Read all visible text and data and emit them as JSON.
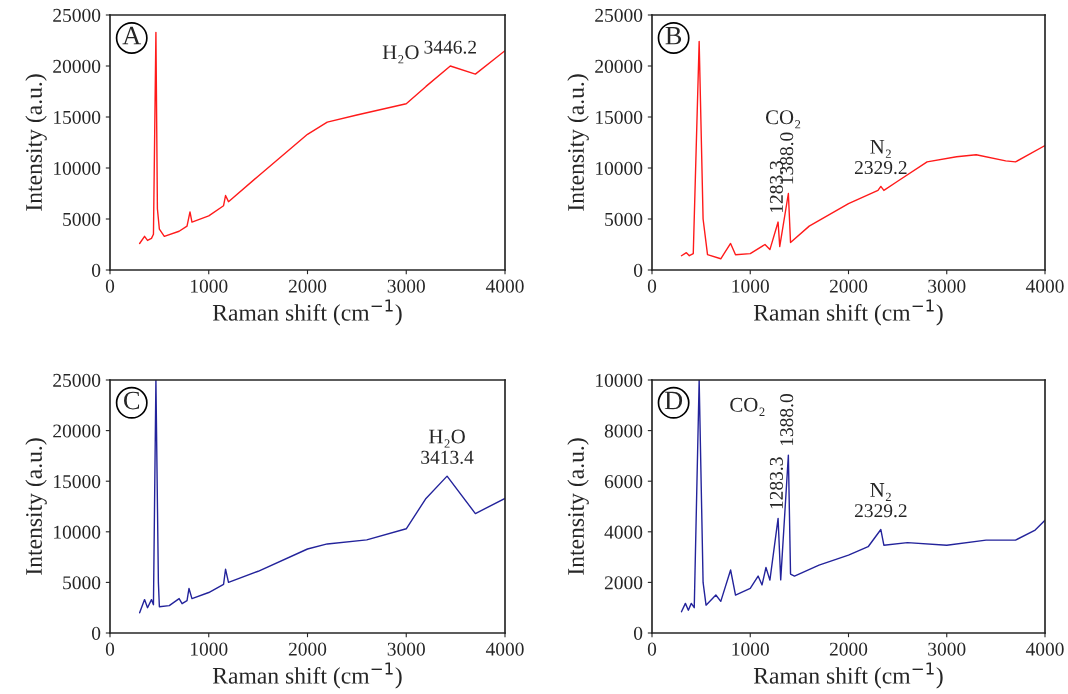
{
  "chart_data": [
    {
      "type": "line",
      "xlabel": "Raman shift (cm$^{−1}$)",
      "ylabel": "Intensity (a.u.)",
      "xlim": [
        0,
        4000
      ],
      "xticks": [
        0,
        1000,
        2000,
        3000,
        4000
      ],
      "ylim": [
        0,
        25000
      ],
      "yticks": [
        0,
        5000,
        10000,
        15000,
        20000,
        25000
      ],
      "annotations": [
        "A",
        "H₂O",
        {
          "text": "3446.2",
          "x": 3446.2,
          "y": 20000
        }
      ],
      "series": [
        {
          "color": "#ff1a1a",
          "x": [
            300,
            350,
            380,
            420,
            440,
            465,
            480,
            500,
            550,
            700,
            780,
            810,
            830,
            1000,
            1150,
            1170,
            1200,
            1500,
            2000,
            2200,
            2500,
            3000,
            3200,
            3446.2,
            3700,
            4000
          ],
          "values": [
            2600,
            3300,
            2900,
            3100,
            3500,
            23300,
            6000,
            4000,
            3300,
            3800,
            4300,
            5700,
            4700,
            5300,
            6300,
            7300,
            6700,
            9200,
            13300,
            14500,
            15200,
            16300,
            18000,
            20000,
            19200,
            21500
          ]
        }
      ]
    },
    {
      "type": "line",
      "xlabel": "Raman shift (cm$^{−1}$)",
      "ylabel": "Intensity (a.u.)",
      "xlim": [
        0,
        4000
      ],
      "xticks": [
        0,
        1000,
        2000,
        3000,
        4000
      ],
      "ylim": [
        0,
        25000
      ],
      "yticks": [
        0,
        5000,
        10000,
        15000,
        20000,
        25000
      ],
      "annotations": [
        "B",
        "CO₂",
        {
          "text": "1283.3",
          "x": 1283.3,
          "y": 4700
        },
        {
          "text": "1388.0",
          "x": 1388.0,
          "y": 7500
        },
        "N₂",
        {
          "text": "2329.2",
          "x": 2329.2,
          "y": 8200
        }
      ],
      "series": [
        {
          "color": "#ff1a1a",
          "x": [
            300,
            350,
            380,
            420,
            480,
            520,
            565,
            700,
            800,
            850,
            1000,
            1150,
            1200,
            1283.3,
            1300,
            1388.0,
            1410,
            1600,
            2000,
            2300,
            2329.2,
            2360,
            2500,
            2800,
            3100,
            3300,
            3600,
            3700,
            4000
          ],
          "values": [
            1400,
            1700,
            1400,
            1600,
            22400,
            5000,
            1500,
            1100,
            2600,
            1500,
            1600,
            2500,
            2000,
            4700,
            2300,
            7500,
            2700,
            4300,
            6500,
            7800,
            8200,
            7800,
            8700,
            10600,
            11100,
            11300,
            10700,
            10600,
            12200
          ]
        }
      ]
    },
    {
      "type": "line",
      "xlabel": "Raman shift (cm$^{−1}$)",
      "ylabel": "Intensity (a.u.)",
      "xlim": [
        0,
        4000
      ],
      "xticks": [
        0,
        1000,
        2000,
        3000,
        4000
      ],
      "ylim": [
        0,
        25000
      ],
      "yticks": [
        0,
        5000,
        10000,
        15000,
        20000,
        25000
      ],
      "annotations": [
        "C",
        "H₂O",
        {
          "text": "3413.4",
          "x": 3413.4,
          "y": 15500
        }
      ],
      "series": [
        {
          "color": "#23239b",
          "x": [
            300,
            350,
            380,
            420,
            440,
            465,
            490,
            500,
            600,
            700,
            730,
            780,
            800,
            830,
            1000,
            1150,
            1170,
            1200,
            1500,
            2000,
            2200,
            2600,
            3000,
            3200,
            3413.4,
            3700,
            4000
          ],
          "values": [
            2000,
            3300,
            2500,
            3300,
            2800,
            25000,
            5000,
            2600,
            2700,
            3400,
            2900,
            3200,
            4400,
            3400,
            4000,
            4800,
            6300,
            5000,
            6100,
            8300,
            8800,
            9200,
            10300,
            13300,
            15500,
            11800,
            13300
          ]
        }
      ]
    },
    {
      "type": "line",
      "xlabel": "Raman shift (cm$^{−1}$)",
      "ylabel": "Intensity (a.u.)",
      "xlim": [
        0,
        4000
      ],
      "xticks": [
        0,
        1000,
        2000,
        3000,
        4000
      ],
      "ylim": [
        0,
        10000
      ],
      "yticks": [
        0,
        2000,
        4000,
        6000,
        8000,
        10000
      ],
      "annotations": [
        "D",
        "CO₂",
        {
          "text": "1283.3",
          "x": 1283.3,
          "y": 4530
        },
        {
          "text": "1388.0",
          "x": 1388.0,
          "y": 7030
        },
        "N₂",
        {
          "text": "2329.2",
          "x": 2329.2,
          "y": 4090
        }
      ],
      "series": [
        {
          "color": "#23239b",
          "x": [
            300,
            340,
            370,
            400,
            430,
            480,
            520,
            550,
            650,
            700,
            800,
            850,
            1000,
            1080,
            1120,
            1160,
            1200,
            1283.3,
            1310,
            1388.0,
            1410,
            1450,
            1700,
            2000,
            2200,
            2329.2,
            2360,
            2600,
            3000,
            3400,
            3700,
            3900,
            4000
          ],
          "values": [
            840,
            1170,
            900,
            1170,
            1000,
            10000,
            2000,
            1100,
            1500,
            1250,
            2490,
            1500,
            1760,
            2250,
            1900,
            2590,
            2090,
            4530,
            2100,
            7030,
            2330,
            2250,
            2680,
            3080,
            3410,
            4090,
            3470,
            3570,
            3470,
            3670,
            3670,
            4070,
            4460
          ]
        }
      ]
    }
  ]
}
